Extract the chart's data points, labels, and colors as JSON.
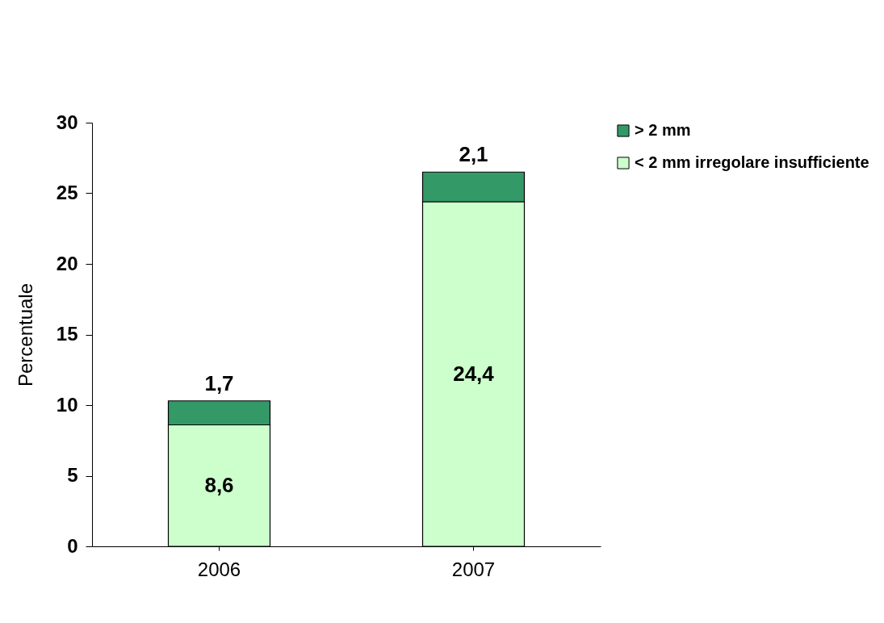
{
  "chart_data": {
    "type": "bar",
    "stacked": true,
    "ylabel": "Percentuale",
    "categories": [
      "2006",
      "2007"
    ],
    "series": [
      {
        "name": "< 2 mm irregolare insufficiente",
        "color": "#ccffcc",
        "values": [
          8.6,
          24.4
        ],
        "value_labels": [
          "8,6",
          "24,4"
        ]
      },
      {
        "name": "> 2 mm",
        "color": "#339966",
        "values": [
          1.7,
          2.1
        ],
        "value_labels": [
          "1,7",
          "2,1"
        ]
      }
    ],
    "ylim": [
      0,
      30
    ],
    "yticks": [
      0,
      5,
      10,
      15,
      20,
      25,
      30
    ],
    "grid": false,
    "legend": "top right"
  }
}
